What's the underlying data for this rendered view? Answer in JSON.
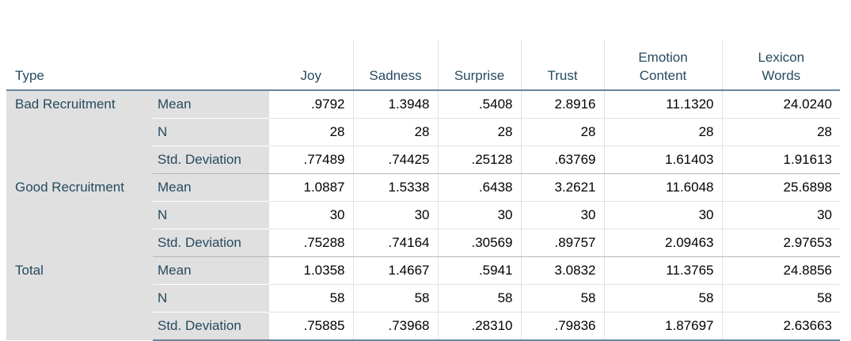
{
  "table": {
    "type_header": "Type",
    "columns": [
      {
        "line1": "Joy",
        "line2": ""
      },
      {
        "line1": "Sadness",
        "line2": ""
      },
      {
        "line1": "Surprise",
        "line2": ""
      },
      {
        "line1": "Trust",
        "line2": ""
      },
      {
        "line1": "Emotion",
        "line2": "Content"
      },
      {
        "line1": "Lexicon",
        "line2": "Words"
      }
    ],
    "groups": [
      {
        "label": "Bad Recruitment",
        "rows": [
          {
            "stat": "Mean",
            "values": [
              ".9792",
              "1.3948",
              ".5408",
              "2.8916",
              "11.1320",
              "24.0240"
            ]
          },
          {
            "stat": "N",
            "values": [
              "28",
              "28",
              "28",
              "28",
              "28",
              "28"
            ]
          },
          {
            "stat": "Std. Deviation",
            "values": [
              ".77489",
              ".74425",
              ".25128",
              ".63769",
              "1.61403",
              "1.91613"
            ]
          }
        ]
      },
      {
        "label": "Good Recruitment",
        "rows": [
          {
            "stat": "Mean",
            "values": [
              "1.0887",
              "1.5338",
              ".6438",
              "3.2621",
              "11.6048",
              "25.6898"
            ]
          },
          {
            "stat": "N",
            "values": [
              "30",
              "30",
              "30",
              "30",
              "30",
              "30"
            ]
          },
          {
            "stat": "Std. Deviation",
            "values": [
              ".75288",
              ".74164",
              ".30569",
              ".89757",
              "2.09463",
              "2.97653"
            ]
          }
        ]
      },
      {
        "label": "Total",
        "rows": [
          {
            "stat": "Mean",
            "values": [
              "1.0358",
              "1.4667",
              ".5941",
              "3.0832",
              "11.3765",
              "24.8856"
            ]
          },
          {
            "stat": "N",
            "values": [
              "58",
              "58",
              "58",
              "58",
              "58",
              "58"
            ]
          },
          {
            "stat": "Std. Deviation",
            "values": [
              ".75885",
              ".73968",
              ".28310",
              ".79836",
              "1.87697",
              "2.63663"
            ]
          }
        ]
      }
    ]
  }
}
